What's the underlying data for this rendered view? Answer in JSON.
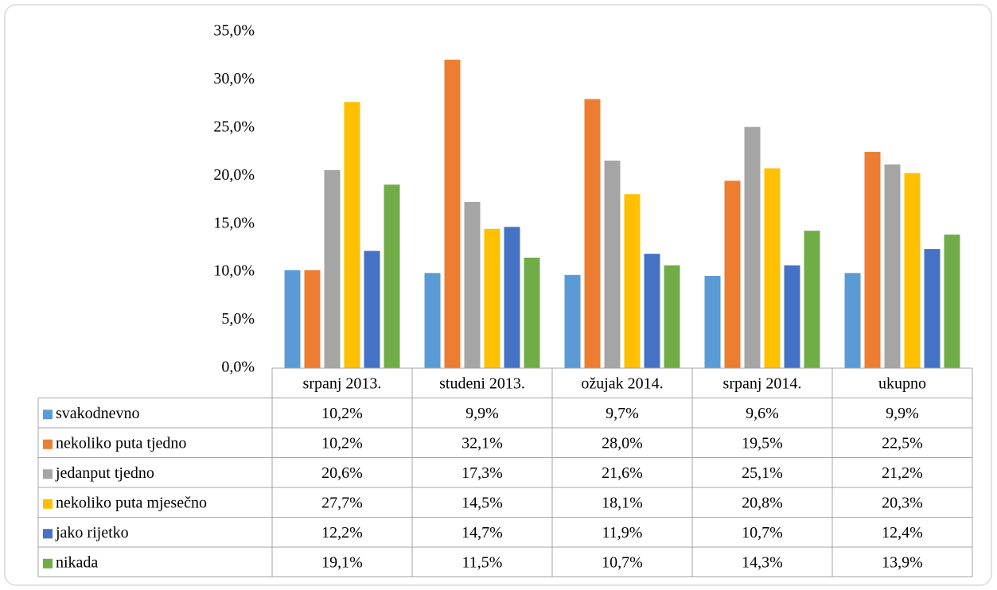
{
  "chart_data": {
    "type": "bar",
    "categories": [
      "srpanj 2013.",
      "studeni 2013.",
      "ožujak 2014.",
      "srpanj 2014.",
      "ukupno"
    ],
    "series": [
      {
        "name": "svakodnevno",
        "color": "#5b9bd5",
        "values": [
          10.2,
          9.9,
          9.7,
          9.6,
          9.9
        ],
        "value_labels": [
          "10,2%",
          "9,9%",
          "9,7%",
          "9,6%",
          "9,9%"
        ]
      },
      {
        "name": "nekoliko puta tjedno",
        "color": "#ed7d31",
        "values": [
          10.2,
          32.1,
          28.0,
          19.5,
          22.5
        ],
        "value_labels": [
          "10,2%",
          "32,1%",
          "28,0%",
          "19,5%",
          "22,5%"
        ]
      },
      {
        "name": "jedanput tjedno",
        "color": "#a5a5a5",
        "values": [
          20.6,
          17.3,
          21.6,
          25.1,
          21.2
        ],
        "value_labels": [
          "20,6%",
          "17,3%",
          "21,6%",
          "25,1%",
          "21,2%"
        ]
      },
      {
        "name": "nekoliko puta mjesečno",
        "color": "#ffc000",
        "values": [
          27.7,
          14.5,
          18.1,
          20.8,
          20.3
        ],
        "value_labels": [
          "27,7%",
          "14,5%",
          "18,1%",
          "20,8%",
          "20,3%"
        ]
      },
      {
        "name": "jako rijetko",
        "color": "#4472c4",
        "values": [
          12.2,
          14.7,
          11.9,
          10.7,
          12.4
        ],
        "value_labels": [
          "12,2%",
          "14,7%",
          "11,9%",
          "10,7%",
          "12,4%"
        ]
      },
      {
        "name": "nikada",
        "color": "#70ad47",
        "values": [
          19.1,
          11.5,
          10.7,
          14.3,
          13.9
        ],
        "value_labels": [
          "19,1%",
          "11,5%",
          "10,7%",
          "14,3%",
          "13,9%"
        ]
      }
    ],
    "ylim": [
      0,
      35
    ],
    "yticks": [
      {
        "value": 0,
        "label": "0,0%"
      },
      {
        "value": 5,
        "label": "5,0%"
      },
      {
        "value": 10,
        "label": "10,0%"
      },
      {
        "value": 15,
        "label": "15,0%"
      },
      {
        "value": 20,
        "label": "20,0%"
      },
      {
        "value": 25,
        "label": "25,0%"
      },
      {
        "value": 30,
        "label": "30,0%"
      },
      {
        "value": 35,
        "label": "35,0%"
      }
    ],
    "grid": false
  }
}
